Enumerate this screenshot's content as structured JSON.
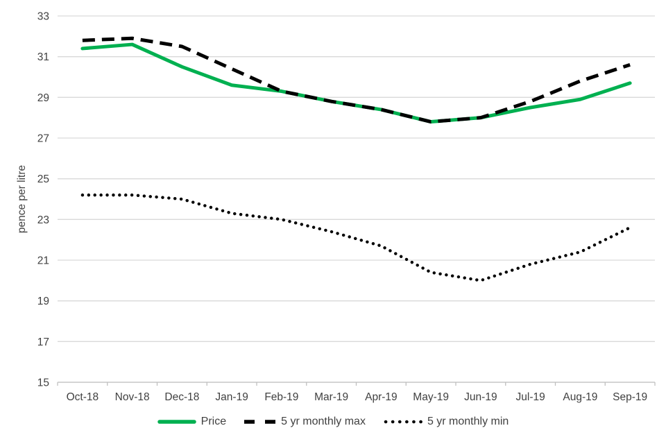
{
  "chart_data": {
    "type": "line",
    "title": "",
    "xlabel": "",
    "ylabel": "pence per litre",
    "ylim": [
      15,
      33
    ],
    "yticks": [
      15,
      17,
      19,
      21,
      23,
      25,
      27,
      29,
      31,
      33
    ],
    "grid": "horizontal",
    "legend_position": "bottom",
    "categories": [
      "Oct-18",
      "Nov-18",
      "Dec-18",
      "Jan-19",
      "Feb-19",
      "Mar-19",
      "Apr-19",
      "May-19",
      "Jun-19",
      "Jul-19",
      "Aug-19",
      "Sep-19"
    ],
    "series": [
      {
        "name": "Price",
        "style": "solid",
        "color": "#00b050",
        "values": [
          31.4,
          31.6,
          30.5,
          29.6,
          29.3,
          28.8,
          28.4,
          27.8,
          28.0,
          28.5,
          28.9,
          29.7
        ]
      },
      {
        "name": "5 yr monthly max",
        "style": "dashed",
        "color": "#000000",
        "values": [
          31.8,
          31.9,
          31.5,
          30.4,
          29.3,
          28.8,
          28.4,
          27.8,
          28.0,
          28.8,
          29.8,
          30.6
        ]
      },
      {
        "name": "5 yr monthly min",
        "style": "dotted",
        "color": "#000000",
        "values": [
          24.2,
          24.2,
          24.0,
          23.3,
          23.0,
          22.4,
          21.7,
          20.4,
          20.0,
          20.8,
          21.4,
          22.6
        ]
      }
    ]
  },
  "colors": {
    "gridline": "#d9d9d9",
    "axis": "#bfbfbf",
    "text": "#404040"
  }
}
